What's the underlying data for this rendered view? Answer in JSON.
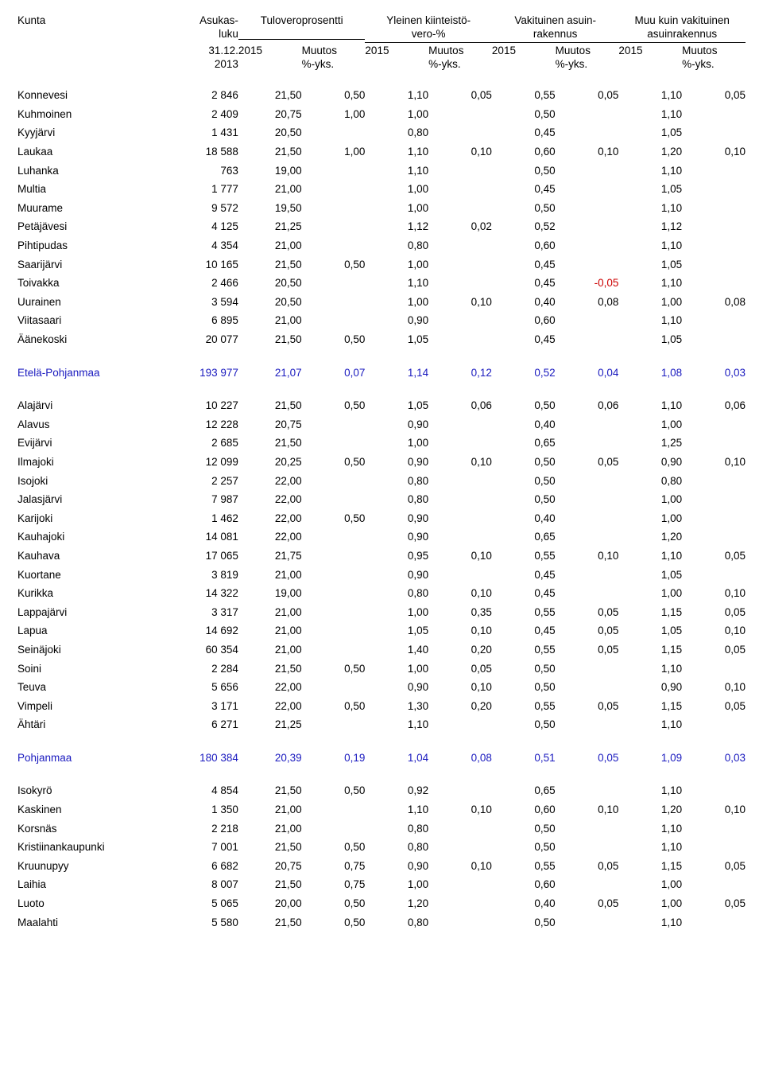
{
  "headers": {
    "kunta": "Kunta",
    "asukas1": "Asukas-",
    "asukas2": "luku",
    "tulovero": "Tuloveroprosentti",
    "yleinen1": "Yleinen kiinteistö-",
    "yleinen2": "vero-%",
    "vakituinen1": "Vakituinen asuin-",
    "vakituinen2": "rakennus",
    "muu1": "Muu kuin vakituinen",
    "muu2": "asuinrakennus",
    "sub_date": "31.12.",
    "sub_year": "2013",
    "sub_2015": "2015",
    "sub_muutos": "Muutos",
    "sub_yks": "%-yks."
  },
  "rows": [
    {
      "t": "d",
      "c": [
        "Konnevesi",
        "2 846",
        "21,50",
        "0,50",
        "1,10",
        "0,05",
        "0,55",
        "0,05",
        "1,10",
        "0,05"
      ]
    },
    {
      "t": "d",
      "c": [
        "Kuhmoinen",
        "2 409",
        "20,75",
        "1,00",
        "1,00",
        "",
        "0,50",
        "",
        "1,10",
        ""
      ]
    },
    {
      "t": "d",
      "c": [
        "Kyyjärvi",
        "1 431",
        "20,50",
        "",
        "0,80",
        "",
        "0,45",
        "",
        "1,05",
        ""
      ]
    },
    {
      "t": "d",
      "c": [
        "Laukaa",
        "18 588",
        "21,50",
        "1,00",
        "1,10",
        "0,10",
        "0,60",
        "0,10",
        "1,20",
        "0,10"
      ]
    },
    {
      "t": "d",
      "c": [
        "Luhanka",
        "763",
        "19,00",
        "",
        "1,10",
        "",
        "0,50",
        "",
        "1,10",
        ""
      ]
    },
    {
      "t": "d",
      "c": [
        "Multia",
        "1 777",
        "21,00",
        "",
        "1,00",
        "",
        "0,45",
        "",
        "1,05",
        ""
      ]
    },
    {
      "t": "d",
      "c": [
        "Muurame",
        "9 572",
        "19,50",
        "",
        "1,00",
        "",
        "0,50",
        "",
        "1,10",
        ""
      ]
    },
    {
      "t": "d",
      "c": [
        "Petäjävesi",
        "4 125",
        "21,25",
        "",
        "1,12",
        "0,02",
        "0,52",
        "",
        "1,12",
        ""
      ]
    },
    {
      "t": "d",
      "c": [
        "Pihtipudas",
        "4 354",
        "21,00",
        "",
        "0,80",
        "",
        "0,60",
        "",
        "1,10",
        ""
      ]
    },
    {
      "t": "d",
      "c": [
        "Saarijärvi",
        "10 165",
        "21,50",
        "0,50",
        "1,00",
        "",
        "0,45",
        "",
        "1,05",
        ""
      ]
    },
    {
      "t": "d",
      "c": [
        "Toivakka",
        "2 466",
        "20,50",
        "",
        "1,10",
        "",
        "0,45",
        "-0,05",
        "1,10",
        ""
      ],
      "neg": [
        7
      ]
    },
    {
      "t": "d",
      "c": [
        "Uurainen",
        "3 594",
        "20,50",
        "",
        "1,00",
        "0,10",
        "0,40",
        "0,08",
        "1,00",
        "0,08"
      ]
    },
    {
      "t": "d",
      "c": [
        "Viitasaari",
        "6 895",
        "21,00",
        "",
        "0,90",
        "",
        "0,60",
        "",
        "1,10",
        ""
      ]
    },
    {
      "t": "d",
      "c": [
        "Äänekoski",
        "20 077",
        "21,50",
        "0,50",
        "1,05",
        "",
        "0,45",
        "",
        "1,05",
        ""
      ]
    },
    {
      "t": "s"
    },
    {
      "t": "r",
      "c": [
        "Etelä-Pohjanmaa",
        "193 977",
        "21,07",
        "0,07",
        "1,14",
        "0,12",
        "0,52",
        "0,04",
        "1,08",
        "0,03"
      ]
    },
    {
      "t": "s"
    },
    {
      "t": "d",
      "c": [
        "Alajärvi",
        "10 227",
        "21,50",
        "0,50",
        "1,05",
        "0,06",
        "0,50",
        "0,06",
        "1,10",
        "0,06"
      ]
    },
    {
      "t": "d",
      "c": [
        "Alavus",
        "12 228",
        "20,75",
        "",
        "0,90",
        "",
        "0,40",
        "",
        "1,00",
        ""
      ]
    },
    {
      "t": "d",
      "c": [
        "Evijärvi",
        "2 685",
        "21,50",
        "",
        "1,00",
        "",
        "0,65",
        "",
        "1,25",
        ""
      ]
    },
    {
      "t": "d",
      "c": [
        "Ilmajoki",
        "12 099",
        "20,25",
        "0,50",
        "0,90",
        "0,10",
        "0,50",
        "0,05",
        "0,90",
        "0,10"
      ]
    },
    {
      "t": "d",
      "c": [
        "Isojoki",
        "2 257",
        "22,00",
        "",
        "0,80",
        "",
        "0,50",
        "",
        "0,80",
        ""
      ]
    },
    {
      "t": "d",
      "c": [
        "Jalasjärvi",
        "7 987",
        "22,00",
        "",
        "0,80",
        "",
        "0,50",
        "",
        "1,00",
        ""
      ]
    },
    {
      "t": "d",
      "c": [
        "Karijoki",
        "1 462",
        "22,00",
        "0,50",
        "0,90",
        "",
        "0,40",
        "",
        "1,00",
        ""
      ]
    },
    {
      "t": "d",
      "c": [
        "Kauhajoki",
        "14 081",
        "22,00",
        "",
        "0,90",
        "",
        "0,65",
        "",
        "1,20",
        ""
      ]
    },
    {
      "t": "d",
      "c": [
        "Kauhava",
        "17 065",
        "21,75",
        "",
        "0,95",
        "0,10",
        "0,55",
        "0,10",
        "1,10",
        "0,05"
      ]
    },
    {
      "t": "d",
      "c": [
        "Kuortane",
        "3 819",
        "21,00",
        "",
        "0,90",
        "",
        "0,45",
        "",
        "1,05",
        ""
      ]
    },
    {
      "t": "d",
      "c": [
        "Kurikka",
        "14 322",
        "19,00",
        "",
        "0,80",
        "0,10",
        "0,45",
        "",
        "1,00",
        "0,10"
      ]
    },
    {
      "t": "d",
      "c": [
        "Lappajärvi",
        "3 317",
        "21,00",
        "",
        "1,00",
        "0,35",
        "0,55",
        "0,05",
        "1,15",
        "0,05"
      ]
    },
    {
      "t": "d",
      "c": [
        "Lapua",
        "14 692",
        "21,00",
        "",
        "1,05",
        "0,10",
        "0,45",
        "0,05",
        "1,05",
        "0,10"
      ]
    },
    {
      "t": "d",
      "c": [
        "Seinäjoki",
        "60 354",
        "21,00",
        "",
        "1,40",
        "0,20",
        "0,55",
        "0,05",
        "1,15",
        "0,05"
      ]
    },
    {
      "t": "d",
      "c": [
        "Soini",
        "2 284",
        "21,50",
        "0,50",
        "1,00",
        "0,05",
        "0,50",
        "",
        "1,10",
        ""
      ]
    },
    {
      "t": "d",
      "c": [
        "Teuva",
        "5 656",
        "22,00",
        "",
        "0,90",
        "0,10",
        "0,50",
        "",
        "0,90",
        "0,10"
      ]
    },
    {
      "t": "d",
      "c": [
        "Vimpeli",
        "3 171",
        "22,00",
        "0,50",
        "1,30",
        "0,20",
        "0,55",
        "0,05",
        "1,15",
        "0,05"
      ]
    },
    {
      "t": "d",
      "c": [
        "Ähtäri",
        "6 271",
        "21,25",
        "",
        "1,10",
        "",
        "0,50",
        "",
        "1,10",
        ""
      ]
    },
    {
      "t": "s"
    },
    {
      "t": "r",
      "c": [
        "Pohjanmaa",
        "180 384",
        "20,39",
        "0,19",
        "1,04",
        "0,08",
        "0,51",
        "0,05",
        "1,09",
        "0,03"
      ]
    },
    {
      "t": "s"
    },
    {
      "t": "d",
      "c": [
        "Isokyrö",
        "4 854",
        "21,50",
        "0,50",
        "0,92",
        "",
        "0,65",
        "",
        "1,10",
        ""
      ]
    },
    {
      "t": "d",
      "c": [
        "Kaskinen",
        "1 350",
        "21,00",
        "",
        "1,10",
        "0,10",
        "0,60",
        "0,10",
        "1,20",
        "0,10"
      ]
    },
    {
      "t": "d",
      "c": [
        "Korsnäs",
        "2 218",
        "21,00",
        "",
        "0,80",
        "",
        "0,50",
        "",
        "1,10",
        ""
      ]
    },
    {
      "t": "d",
      "c": [
        "Kristiinankaupunki",
        "7 001",
        "21,50",
        "0,50",
        "0,80",
        "",
        "0,50",
        "",
        "1,10",
        ""
      ]
    },
    {
      "t": "d",
      "c": [
        "Kruunupyy",
        "6 682",
        "20,75",
        "0,75",
        "0,90",
        "0,10",
        "0,55",
        "0,05",
        "1,15",
        "0,05"
      ]
    },
    {
      "t": "d",
      "c": [
        "Laihia",
        "8 007",
        "21,50",
        "0,75",
        "1,00",
        "",
        "0,60",
        "",
        "1,00",
        ""
      ]
    },
    {
      "t": "d",
      "c": [
        "Luoto",
        "5 065",
        "20,00",
        "0,50",
        "1,20",
        "",
        "0,40",
        "0,05",
        "1,00",
        "0,05"
      ]
    },
    {
      "t": "d",
      "c": [
        "Maalahti",
        "5 580",
        "21,50",
        "0,50",
        "0,80",
        "",
        "0,50",
        "",
        "1,10",
        ""
      ]
    }
  ]
}
